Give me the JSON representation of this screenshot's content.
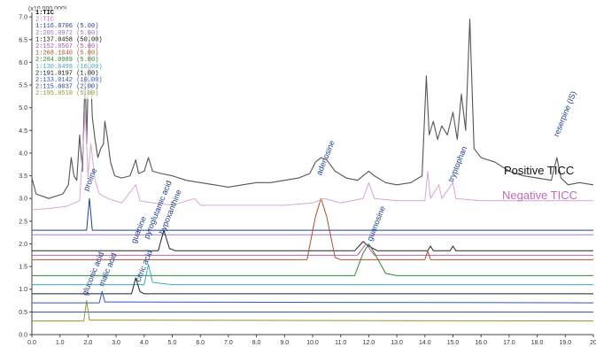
{
  "chart_data": {
    "type": "line",
    "multiplier_label": "(x10,000,000)",
    "x_ticks": [
      "0.0",
      "1.0",
      "2.0",
      "3.0",
      "4.0",
      "5.0",
      "6.0",
      "7.0",
      "8.0",
      "9.0",
      "10.0",
      "11.0",
      "12.0",
      "13.0",
      "14.0",
      "15.0",
      "16.0",
      "17.0",
      "18.0",
      "19.0",
      "20"
    ],
    "y_ticks": [
      "0.0",
      "0.5",
      "1.0",
      "1.5",
      "2.0",
      "2.5",
      "3.0",
      "3.5",
      "4.0",
      "4.5",
      "5.0",
      "5.5",
      "6.0",
      "6.5",
      "7.0"
    ],
    "xlim": [
      0,
      20
    ],
    "ylim": [
      0,
      7.1
    ],
    "legend": [
      {
        "text": "1:TIC",
        "color": "#111111",
        "bold": true
      },
      {
        "text": "2:TIC",
        "color": "#c46ab8"
      },
      {
        "text": "1:116.0706 (5.00)",
        "color": "#1f3f9f"
      },
      {
        "text": "2:205.0972 (5.00)",
        "color": "#9b6bc4"
      },
      {
        "text": "1:137.0458 (50.00)",
        "color": "#111111"
      },
      {
        "text": "2:152.0567 (5.00)",
        "color": "#b04fa4"
      },
      {
        "text": "1:268.1040 (5.00)",
        "color": "#b0522b"
      },
      {
        "text": "2:284.0989 (5.00)",
        "color": "#2f8a3a"
      },
      {
        "text": "1:130.0499 (10.00)",
        "color": "#3aa8c4"
      },
      {
        "text": "2:191.0197 (1.00)",
        "color": "#111111"
      },
      {
        "text": "2:133.0142 (10.00)",
        "color": "#2f56c4"
      },
      {
        "text": "2:115.0037 (2.00)",
        "color": "#1f3f9f"
      },
      {
        "text": "2:195.0510 (5.00)",
        "color": "#8a9a2f"
      }
    ],
    "labels": {
      "positive": "Positive TICC",
      "negative": "Negative TICC"
    },
    "positive_color": "#111111",
    "negative_color": "#c46ab8",
    "annotations": [
      {
        "text": "proline",
        "x": 2.0,
        "y": 3.15
      },
      {
        "text": "guanine",
        "x": 3.7,
        "y": 2.0
      },
      {
        "text": "pyroglutamic acid",
        "x": 4.15,
        "y": 2.1
      },
      {
        "text": "hypoxanthine",
        "x": 4.7,
        "y": 2.2
      },
      {
        "text": "adenosine",
        "x": 10.3,
        "y": 3.5
      },
      {
        "text": "guanosine",
        "x": 12.1,
        "y": 2.05
      },
      {
        "text": "tryptophan",
        "x": 15.0,
        "y": 3.35
      },
      {
        "text": "reserpine (IS)",
        "x": 18.75,
        "y": 4.35
      },
      {
        "text": "gluconic acid",
        "x": 1.95,
        "y": 0.85
      },
      {
        "text": "malic acid",
        "x": 2.55,
        "y": 1.05
      },
      {
        "text": "citric acid",
        "x": 3.85,
        "y": 1.15
      }
    ],
    "series": [
      {
        "name": "Positive TICC",
        "color": "#555555",
        "width": 1.1,
        "points": [
          [
            0,
            3.45
          ],
          [
            0.15,
            3.1
          ],
          [
            0.6,
            3.0
          ],
          [
            1.1,
            3.1
          ],
          [
            1.3,
            3.3
          ],
          [
            1.4,
            3.9
          ],
          [
            1.5,
            3.5
          ],
          [
            1.6,
            3.4
          ],
          [
            1.7,
            4.4
          ],
          [
            1.8,
            3.6
          ],
          [
            1.9,
            5.8
          ],
          [
            1.95,
            4.2
          ],
          [
            2.05,
            6.7
          ],
          [
            2.15,
            4.8
          ],
          [
            2.25,
            4.3
          ],
          [
            2.35,
            3.9
          ],
          [
            2.45,
            4.1
          ],
          [
            2.55,
            4.2
          ],
          [
            2.6,
            4.7
          ],
          [
            2.7,
            4.3
          ],
          [
            2.8,
            3.8
          ],
          [
            2.95,
            3.5
          ],
          [
            3.2,
            3.45
          ],
          [
            3.5,
            3.5
          ],
          [
            3.7,
            3.85
          ],
          [
            3.8,
            3.55
          ],
          [
            4.0,
            3.6
          ],
          [
            4.15,
            3.9
          ],
          [
            4.3,
            3.6
          ],
          [
            4.6,
            3.55
          ],
          [
            5.0,
            3.5
          ],
          [
            5.5,
            3.4
          ],
          [
            6.0,
            3.35
          ],
          [
            6.5,
            3.3
          ],
          [
            7.0,
            3.25
          ],
          [
            7.5,
            3.3
          ],
          [
            8.0,
            3.35
          ],
          [
            8.5,
            3.35
          ],
          [
            9.0,
            3.4
          ],
          [
            9.5,
            3.45
          ],
          [
            9.9,
            3.55
          ],
          [
            10.1,
            3.8
          ],
          [
            10.3,
            3.9
          ],
          [
            10.5,
            3.85
          ],
          [
            10.8,
            3.6
          ],
          [
            11.2,
            3.45
          ],
          [
            11.6,
            3.4
          ],
          [
            12.0,
            3.6
          ],
          [
            12.2,
            3.5
          ],
          [
            12.6,
            3.35
          ],
          [
            13.0,
            3.3
          ],
          [
            13.5,
            3.35
          ],
          [
            13.9,
            3.5
          ],
          [
            14.05,
            5.7
          ],
          [
            14.15,
            4.4
          ],
          [
            14.3,
            4.7
          ],
          [
            14.45,
            4.3
          ],
          [
            14.6,
            4.6
          ],
          [
            14.8,
            4.4
          ],
          [
            15.0,
            4.9
          ],
          [
            15.15,
            4.3
          ],
          [
            15.3,
            5.3
          ],
          [
            15.45,
            4.5
          ],
          [
            15.6,
            6.95
          ],
          [
            15.75,
            4.1
          ],
          [
            16.0,
            3.9
          ],
          [
            16.5,
            3.8
          ],
          [
            17.0,
            3.6
          ],
          [
            17.5,
            3.5
          ],
          [
            18.0,
            3.45
          ],
          [
            18.5,
            3.4
          ],
          [
            18.7,
            3.9
          ],
          [
            18.85,
            3.45
          ],
          [
            19.1,
            3.3
          ],
          [
            19.5,
            3.35
          ],
          [
            20,
            3.3
          ]
        ]
      },
      {
        "name": "Negative TICC",
        "color": "#d7a6d3",
        "width": 1.0,
        "points": [
          [
            0,
            2.75
          ],
          [
            0.6,
            2.78
          ],
          [
            1.2,
            2.82
          ],
          [
            1.7,
            2.95
          ],
          [
            1.9,
            4.9
          ],
          [
            2.0,
            3.5
          ],
          [
            2.1,
            4.2
          ],
          [
            2.25,
            3.4
          ],
          [
            2.4,
            3.1
          ],
          [
            2.7,
            3.0
          ],
          [
            3.2,
            2.9
          ],
          [
            3.7,
            3.3
          ],
          [
            3.85,
            2.95
          ],
          [
            4.3,
            2.9
          ],
          [
            5.0,
            2.85
          ],
          [
            5.8,
            3.0
          ],
          [
            6.0,
            2.85
          ],
          [
            7.0,
            2.85
          ],
          [
            8.0,
            2.85
          ],
          [
            9.0,
            2.85
          ],
          [
            10.0,
            2.9
          ],
          [
            10.4,
            3.0
          ],
          [
            11.0,
            2.9
          ],
          [
            11.8,
            3.0
          ],
          [
            12.0,
            3.35
          ],
          [
            12.2,
            3.0
          ],
          [
            13.0,
            2.95
          ],
          [
            14.0,
            2.95
          ],
          [
            14.1,
            3.6
          ],
          [
            14.2,
            3.0
          ],
          [
            14.5,
            3.3
          ],
          [
            14.6,
            3.0
          ],
          [
            15.0,
            3.35
          ],
          [
            15.1,
            3.0
          ],
          [
            16.0,
            2.95
          ],
          [
            17.0,
            2.95
          ],
          [
            18.0,
            2.95
          ],
          [
            19.0,
            2.95
          ],
          [
            20,
            2.95
          ]
        ]
      },
      {
        "name": "1:116.0706",
        "color": "#1f3f9f",
        "width": 1.0,
        "points": [
          [
            0,
            2.3
          ],
          [
            1.95,
            2.3
          ],
          [
            2.05,
            3.0
          ],
          [
            2.15,
            2.3
          ],
          [
            20,
            2.3
          ]
        ]
      },
      {
        "name": "2:205.0972",
        "color": "#9b6bc4",
        "width": 0.9,
        "points": [
          [
            0,
            2.2
          ],
          [
            20,
            2.2
          ]
        ]
      },
      {
        "name": "1:137.0458",
        "color": "#222222",
        "width": 1.0,
        "points": [
          [
            0,
            1.85
          ],
          [
            4.5,
            1.85
          ],
          [
            4.7,
            2.3
          ],
          [
            4.9,
            1.9
          ],
          [
            5.1,
            1.85
          ],
          [
            11.5,
            1.85
          ],
          [
            11.8,
            2.05
          ],
          [
            12.0,
            1.95
          ],
          [
            12.3,
            1.85
          ],
          [
            14.1,
            1.85
          ],
          [
            14.2,
            1.95
          ],
          [
            14.3,
            1.85
          ],
          [
            14.9,
            1.85
          ],
          [
            15.0,
            1.95
          ],
          [
            15.1,
            1.85
          ],
          [
            20,
            1.85
          ]
        ]
      },
      {
        "name": "2:152.0567",
        "color": "#b04fa4",
        "width": 0.9,
        "points": [
          [
            0,
            1.75
          ],
          [
            11.6,
            1.75
          ],
          [
            11.9,
            2.0
          ],
          [
            12.2,
            1.75
          ],
          [
            20,
            1.75
          ]
        ]
      },
      {
        "name": "1:268.1040",
        "color": "#b0522b",
        "width": 1.0,
        "points": [
          [
            0,
            1.65
          ],
          [
            9.8,
            1.65
          ],
          [
            10.1,
            2.6
          ],
          [
            10.3,
            3.0
          ],
          [
            10.5,
            2.6
          ],
          [
            10.8,
            1.7
          ],
          [
            11.0,
            1.65
          ],
          [
            14.0,
            1.65
          ],
          [
            14.1,
            1.85
          ],
          [
            14.2,
            1.65
          ],
          [
            20,
            1.65
          ]
        ]
      },
      {
        "name": "2:284.0989",
        "color": "#2f8a3a",
        "width": 1.0,
        "points": [
          [
            0,
            1.3
          ],
          [
            11.5,
            1.3
          ],
          [
            11.8,
            1.8
          ],
          [
            12.0,
            2.0
          ],
          [
            12.2,
            1.8
          ],
          [
            12.6,
            1.35
          ],
          [
            13.0,
            1.3
          ],
          [
            20,
            1.3
          ]
        ]
      },
      {
        "name": "1:130.0499",
        "color": "#3aa8c4",
        "width": 1.0,
        "points": [
          [
            0,
            1.1
          ],
          [
            4.0,
            1.1
          ],
          [
            4.15,
            1.55
          ],
          [
            4.3,
            1.15
          ],
          [
            5.0,
            1.1
          ],
          [
            20,
            1.1
          ]
        ]
      },
      {
        "name": "2:191.0197",
        "color": "#222222",
        "width": 1.0,
        "points": [
          [
            0,
            0.9
          ],
          [
            3.55,
            0.9
          ],
          [
            3.7,
            1.25
          ],
          [
            3.85,
            0.95
          ],
          [
            4.0,
            0.9
          ],
          [
            20,
            0.9
          ]
        ]
      },
      {
        "name": "2:133.0142",
        "color": "#2f56c4",
        "width": 1.0,
        "points": [
          [
            0,
            0.7
          ],
          [
            2.4,
            0.7
          ],
          [
            2.5,
            0.95
          ],
          [
            2.6,
            0.72
          ],
          [
            20,
            0.7
          ]
        ]
      },
      {
        "name": "2:115.0037",
        "color": "#1f3f9f",
        "width": 0.9,
        "points": [
          [
            0,
            0.5
          ],
          [
            20,
            0.5
          ]
        ]
      },
      {
        "name": "2:195.0510",
        "color": "#8a9a2f",
        "width": 1.0,
        "points": [
          [
            0,
            0.3
          ],
          [
            1.85,
            0.3
          ],
          [
            1.95,
            0.75
          ],
          [
            2.05,
            0.32
          ],
          [
            20,
            0.3
          ]
        ]
      }
    ]
  }
}
